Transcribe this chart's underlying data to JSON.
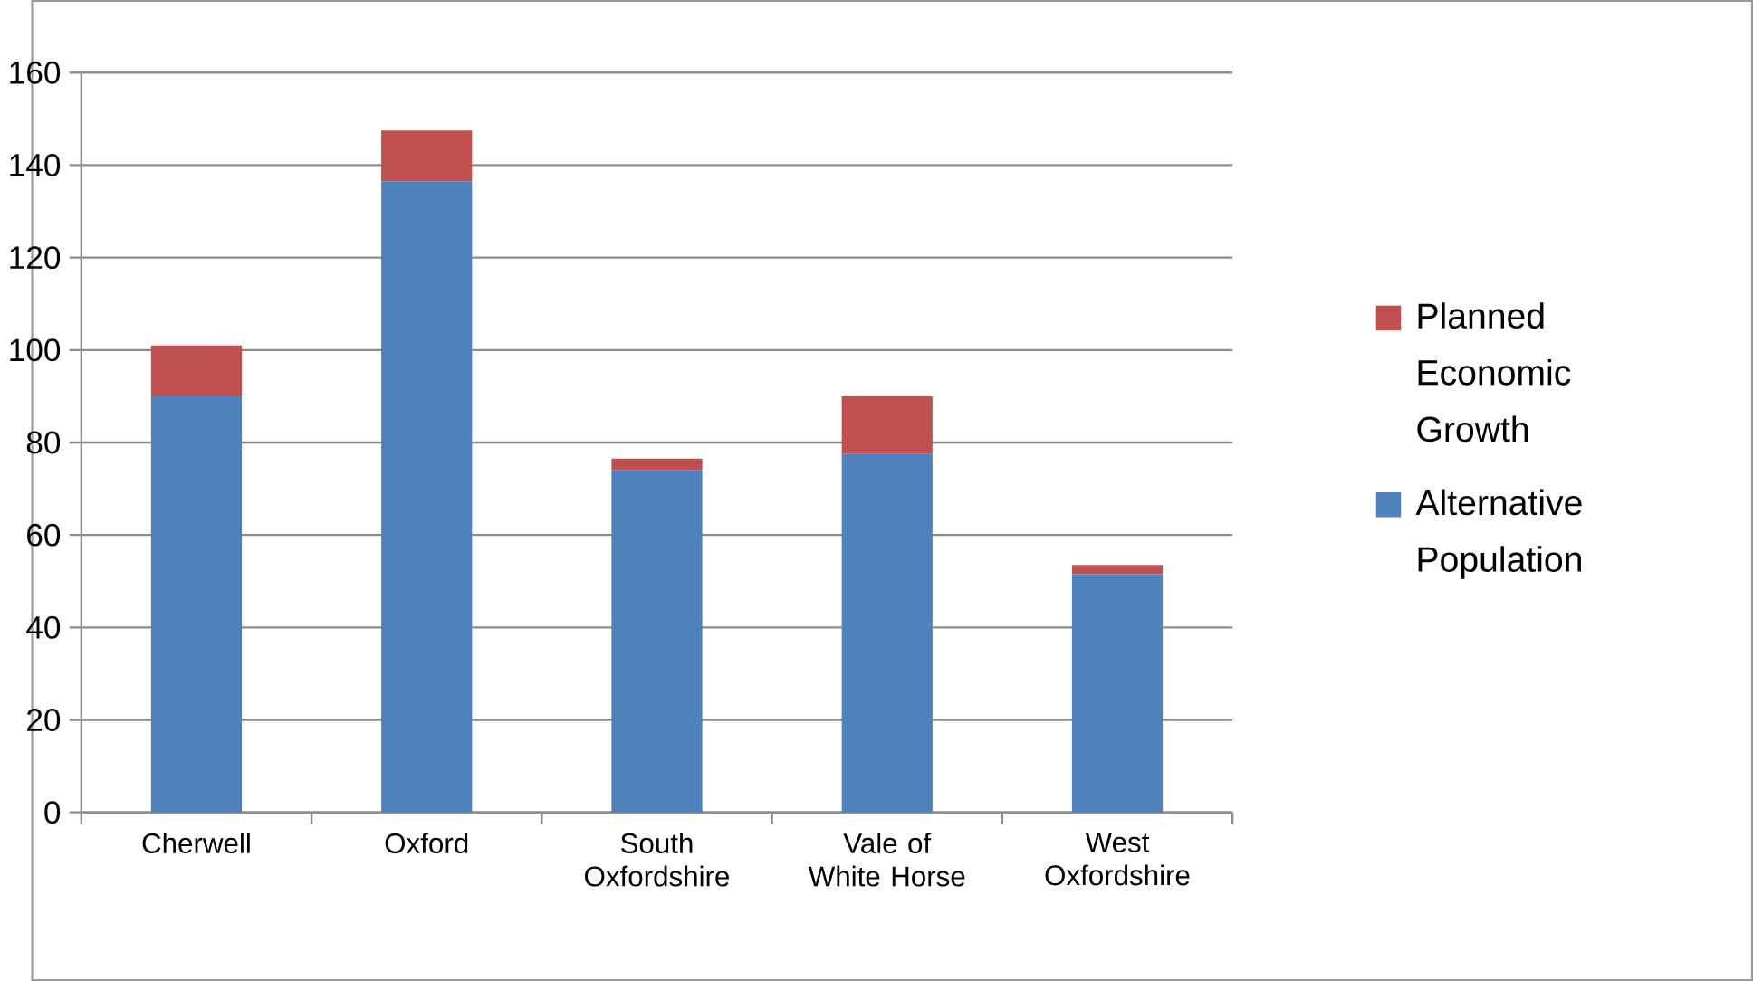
{
  "chart_data": {
    "type": "bar",
    "stacked": true,
    "categories": [
      "Cherwell",
      "Oxford",
      "South Oxfordshire",
      "Vale of White Horse",
      "West Oxfordshire"
    ],
    "series": [
      {
        "name": "Alternative Population",
        "color": "#4f81bd",
        "values": [
          90,
          136.5,
          74,
          77.5,
          51.5
        ]
      },
      {
        "name": "Planned Economic Growth",
        "color": "#c0504d",
        "values": [
          11,
          11,
          2.5,
          12.5,
          2
        ]
      }
    ],
    "ylim": [
      0,
      160
    ],
    "yticks": [
      0,
      20,
      40,
      60,
      80,
      100,
      120,
      140,
      160
    ],
    "grid": "y",
    "legend": "right"
  }
}
